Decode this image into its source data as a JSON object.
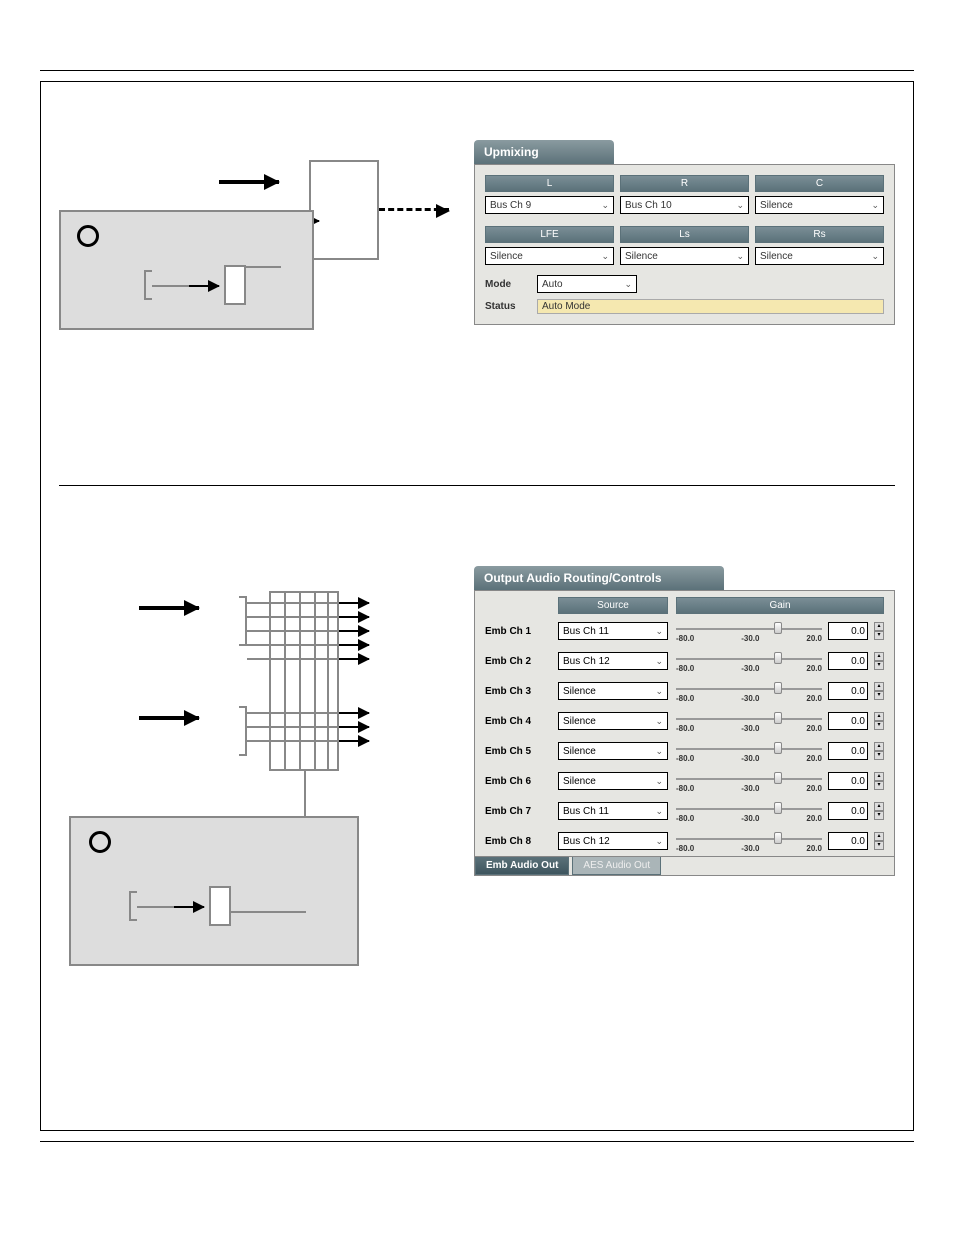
{
  "upmixing": {
    "title": "Upmixing",
    "channels_top": [
      "L",
      "R",
      "C"
    ],
    "selects_top": [
      "Bus Ch 9",
      "Bus Ch 10",
      "Silence"
    ],
    "channels_bot": [
      "LFE",
      "Ls",
      "Rs"
    ],
    "selects_bot": [
      "Silence",
      "Silence",
      "Silence"
    ],
    "mode_label": "Mode",
    "mode_value": "Auto",
    "status_label": "Status",
    "status_value": "Auto Mode"
  },
  "routing": {
    "title": "Output Audio Routing/Controls",
    "header_source": "Source",
    "header_gain": "Gain",
    "slider_ticks": [
      "-80.0",
      "-30.0",
      "20.0"
    ],
    "thumb_pct": 67,
    "rows": [
      {
        "label": "Emb Ch 1",
        "source": "Bus Ch 11",
        "gain": "0.0"
      },
      {
        "label": "Emb Ch 2",
        "source": "Bus Ch 12",
        "gain": "0.0"
      },
      {
        "label": "Emb Ch 3",
        "source": "Silence",
        "gain": "0.0"
      },
      {
        "label": "Emb Ch 4",
        "source": "Silence",
        "gain": "0.0"
      },
      {
        "label": "Emb Ch 5",
        "source": "Silence",
        "gain": "0.0"
      },
      {
        "label": "Emb Ch 6",
        "source": "Silence",
        "gain": "0.0"
      },
      {
        "label": "Emb Ch 7",
        "source": "Bus Ch 11",
        "gain": "0.0"
      },
      {
        "label": "Emb Ch 8",
        "source": "Bus Ch 12",
        "gain": "0.0"
      }
    ],
    "tab_active": "Emb Audio Out",
    "tab_inactive": "AES Audio Out"
  },
  "colors": {
    "panel_bg": "#e6e6e2",
    "header_grad_top": "#8a9ba0",
    "header_grad_bot": "#5b7179",
    "gray_block": "#dddddd",
    "status_bg": "#f5e8b0"
  }
}
